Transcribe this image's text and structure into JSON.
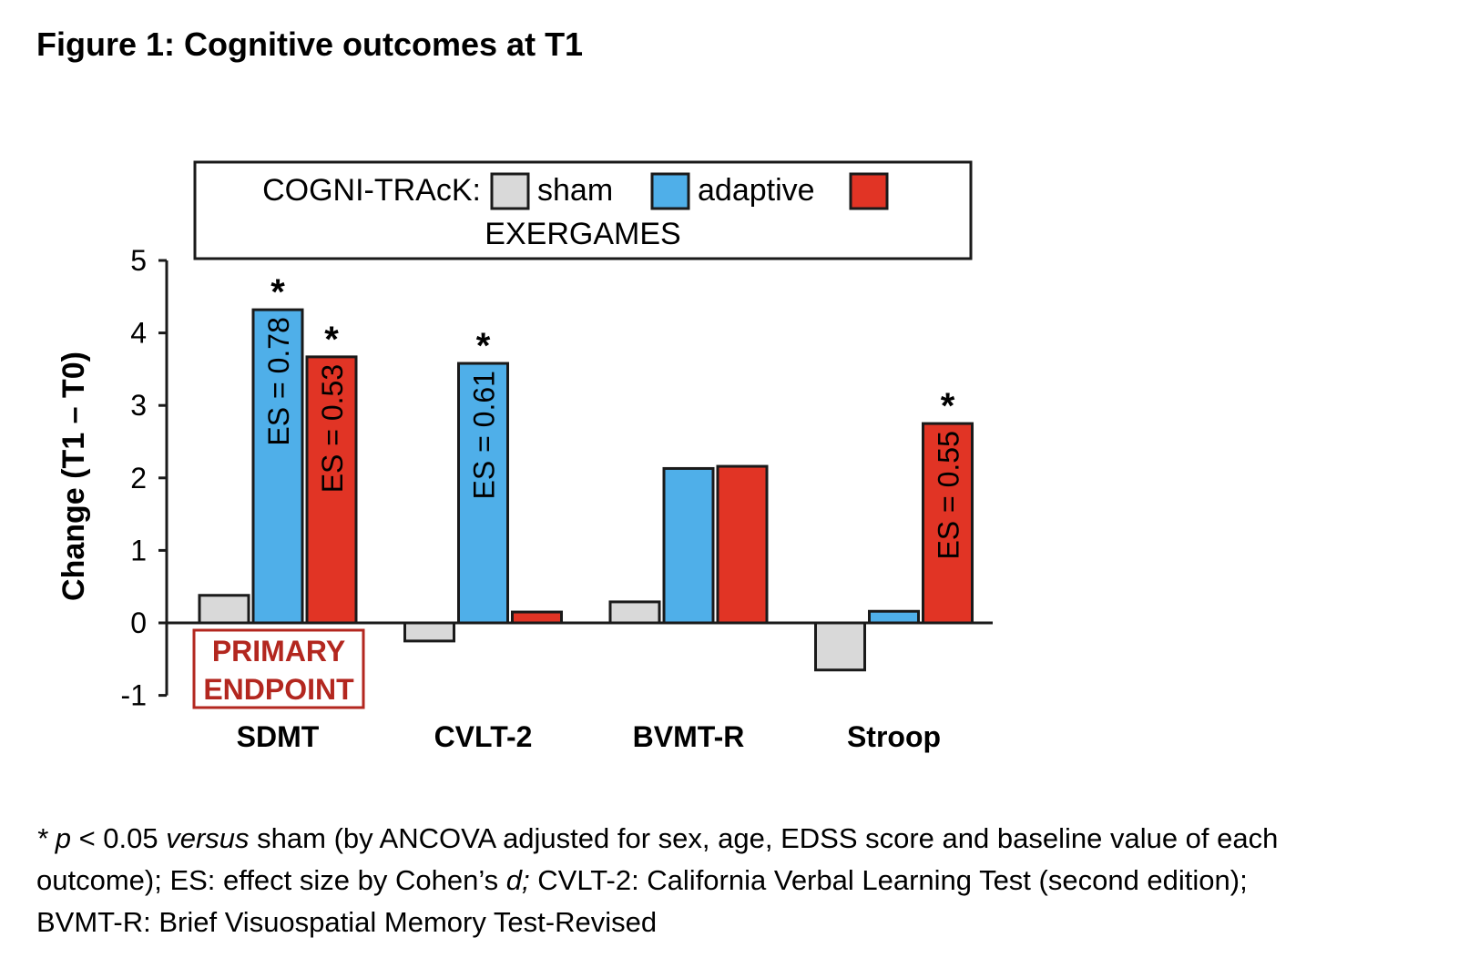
{
  "figure_title": "Figure 1: Cognitive outcomes at T1",
  "colors": {
    "sham": "#d9d9d9",
    "adaptive": "#4fafe9",
    "exergames": "#e13425",
    "primary": "#b3271f",
    "stroke": "#1a1a1a"
  },
  "chart_data": {
    "type": "bar",
    "title": "",
    "xlabel": "",
    "ylabel": "Change (T1 – T0)",
    "ylim": [
      -1,
      5
    ],
    "yticks": [
      "-1",
      "0",
      "1",
      "2",
      "3",
      "4",
      "5"
    ],
    "categories": [
      "SDMT",
      "CVLT-2",
      "BVMT-R",
      "Stroop"
    ],
    "series": [
      {
        "name": "sham",
        "values": [
          0.38,
          -0.25,
          0.29,
          -0.65
        ]
      },
      {
        "name": "adaptive",
        "values": [
          4.32,
          3.58,
          2.13,
          0.16
        ]
      },
      {
        "name": "EXERGAMES",
        "values": [
          3.67,
          0.15,
          2.16,
          2.75
        ]
      }
    ],
    "legend": {
      "prefix": "COGNI-TRAcK:",
      "labels": [
        "sham",
        "adaptive",
        "EXERGAMES"
      ],
      "position": "top"
    },
    "annotations": [
      {
        "category": "SDMT",
        "series": "adaptive",
        "star": "*",
        "es": "ES = 0.78"
      },
      {
        "category": "SDMT",
        "series": "EXERGAMES",
        "star": "*",
        "es": "ES = 0.53"
      },
      {
        "category": "CVLT-2",
        "series": "adaptive",
        "star": "*",
        "es": "ES = 0.61"
      },
      {
        "category": "Stroop",
        "series": "EXERGAMES",
        "star": "*",
        "es": "ES = 0.55"
      }
    ],
    "primary_endpoint": {
      "line1": "PRIMARY",
      "line2": "ENDPOINT",
      "category": "SDMT"
    }
  },
  "caption": {
    "star": "*",
    "p": "p",
    "lt": " < 0.05 ",
    "versus": "versus",
    "rest1": " sham (by ANCOVA adjusted for sex, age, EDSS score and baseline value of each",
    "line2a": "outcome); ES: effect size by Cohen’s ",
    "d": "d;",
    "line2b": " CVLT-2: California Verbal Learning Test (second edition);",
    "line3": "BVMT-R: Brief Visuospatial Memory Test-Revised"
  }
}
